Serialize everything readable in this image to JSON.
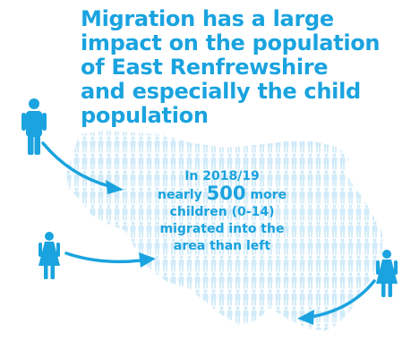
{
  "headline": {
    "lines": [
      "Migration has a large",
      "impact on the population",
      "of East Renfrewshire",
      "and especially the child",
      "population"
    ]
  },
  "stat": {
    "line1": "In 2018/19",
    "line2_pre": "nearly",
    "number": "500",
    "line2_post": "more",
    "line3": "children (0-14)",
    "line4": "migrated into the",
    "line5": "area than left"
  },
  "icons": [
    "man-icon",
    "woman-icon",
    "woman-icon",
    "arrow-icon"
  ],
  "colors": {
    "accent": "#1aa3df",
    "map_figures": "#d2ebf8"
  }
}
